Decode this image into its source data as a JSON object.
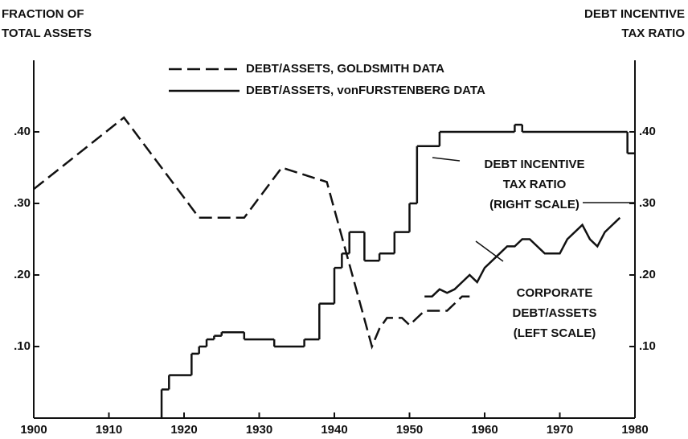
{
  "chart_data": {
    "type": "line",
    "y_axis_title": [
      "FRACTION OF",
      "TOTAL ASSETS"
    ],
    "y2_axis_title": [
      "DEBT INCENTIVE",
      "TAX RATIO"
    ],
    "xlim": [
      1900,
      1980
    ],
    "xticks": [
      1900,
      1910,
      1920,
      1930,
      1940,
      1950,
      1960,
      1970,
      1980
    ],
    "ylim": [
      0,
      0.5
    ],
    "yticks": [
      {
        "value": 0.1,
        "label": ".10"
      },
      {
        "value": 0.2,
        "label": ".20"
      },
      {
        "value": 0.3,
        "label": ".30"
      },
      {
        "value": 0.4,
        "label": ".40"
      }
    ],
    "y2lim": [
      0,
      0.5
    ],
    "y2ticks": [
      {
        "value": 0.1,
        "label": ".10"
      },
      {
        "value": 0.2,
        "label": ".20"
      },
      {
        "value": 0.3,
        "label": ".30"
      },
      {
        "value": 0.4,
        "label": ".40"
      }
    ],
    "series": [
      {
        "name": "DEBT/ASSETS, GOLDSMITH DATA",
        "color": "#111111",
        "dash": true,
        "x": [
          1900,
          1912,
          1922,
          1928,
          1933,
          1939,
          1945,
          1946,
          1947,
          1949,
          1950,
          1951,
          1952,
          1955,
          1956,
          1957,
          1958
        ],
        "values": [
          0.32,
          0.42,
          0.28,
          0.28,
          0.35,
          0.33,
          0.1,
          0.125,
          0.14,
          0.14,
          0.13,
          0.14,
          0.15,
          0.15,
          0.16,
          0.17,
          0.17
        ]
      },
      {
        "name": "DEBT/ASSETS, vonFURSTENBERG DATA",
        "color": "#111111",
        "x": [
          1952,
          1953,
          1954,
          1955,
          1956,
          1957,
          1958,
          1959,
          1960,
          1962,
          1963,
          1964,
          1965,
          1966,
          1968,
          1970,
          1971,
          1973,
          1974,
          1975,
          1976,
          1978
        ],
        "values": [
          0.17,
          0.17,
          0.18,
          0.175,
          0.18,
          0.19,
          0.2,
          0.19,
          0.21,
          0.23,
          0.24,
          0.24,
          0.25,
          0.25,
          0.23,
          0.23,
          0.25,
          0.27,
          0.25,
          0.24,
          0.26,
          0.28
        ]
      },
      {
        "color": "#111111",
        "axis": "y2",
        "step": true,
        "x": [
          1917,
          1917.01,
          1918,
          1921,
          1922,
          1923,
          1924,
          1925,
          1928,
          1932,
          1936,
          1938,
          1940,
          1941,
          1942,
          1944,
          1946,
          1948,
          1950,
          1951,
          1954,
          1964,
          1965,
          1979
        ],
        "values": [
          0,
          0.04,
          0.06,
          0.09,
          0.1,
          0.11,
          0.115,
          0.12,
          0.11,
          0.1,
          0.11,
          0.16,
          0.21,
          0.23,
          0.26,
          0.22,
          0.23,
          0.26,
          0.3,
          0.38,
          0.4,
          0.41,
          0.4,
          0.37
        ]
      }
    ],
    "annotations": [
      {
        "lines": [
          "DEBT INCENTIVE",
          "TAX RATIO",
          "(RIGHT SCALE)"
        ]
      },
      {
        "lines": [
          "CORPORATE",
          "DEBT/ASSETS",
          "(LEFT SCALE)"
        ]
      }
    ]
  }
}
